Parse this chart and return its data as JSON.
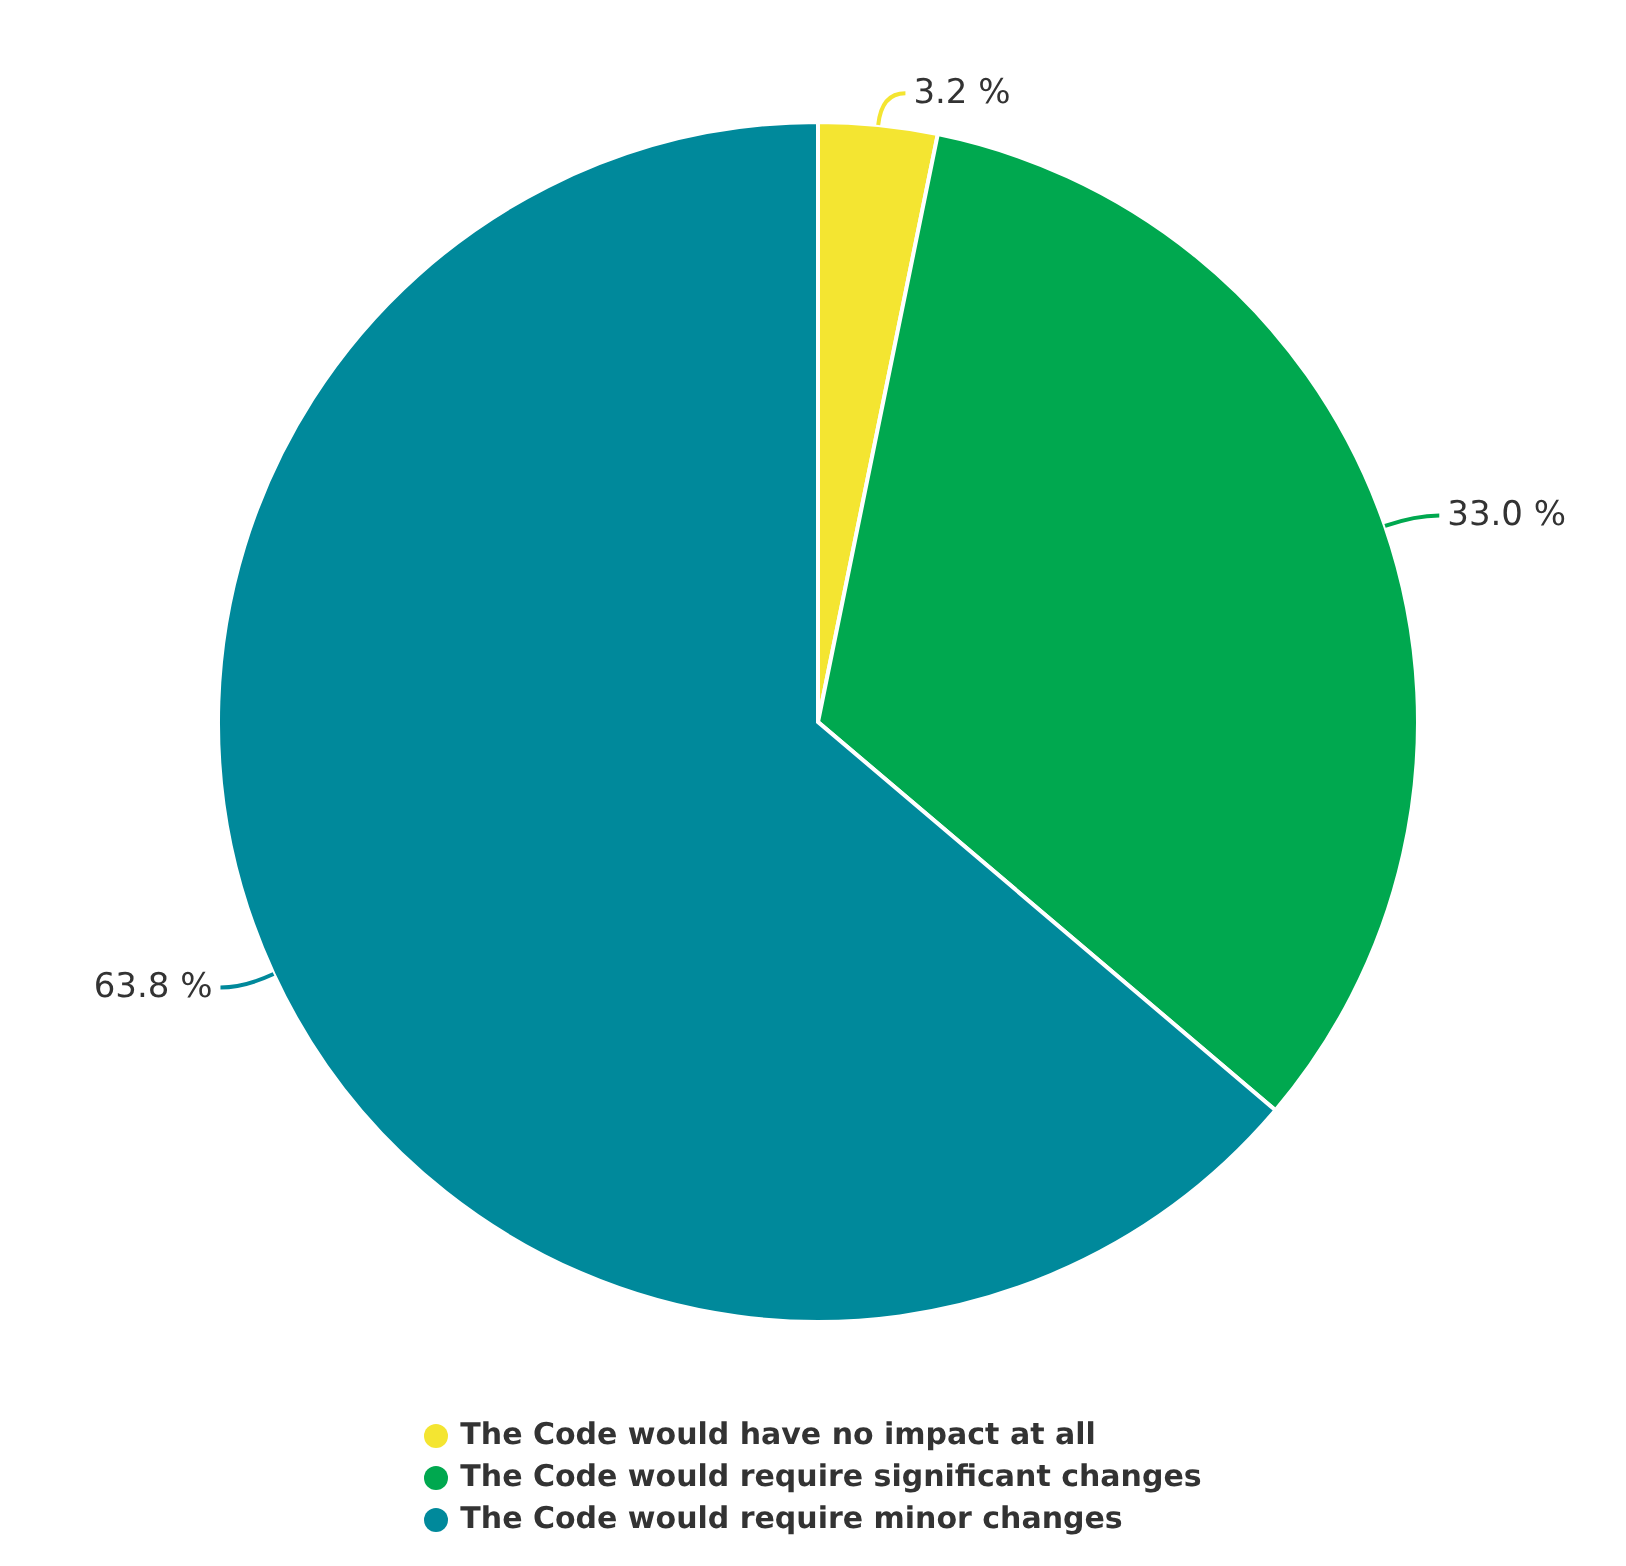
{
  "chart_data": {
    "type": "pie",
    "categories": [
      "The Code would have no impact at all",
      "The Code would require significant changes",
      "The Code would require minor changes"
    ],
    "values": [
      3.2,
      33.0,
      63.8
    ],
    "colors": [
      "#f4e531",
      "#00a84f",
      "#00899b"
    ],
    "value_labels": [
      "3.2 %",
      "33.0 %",
      "63.8 %"
    ],
    "legend": "bottom"
  }
}
